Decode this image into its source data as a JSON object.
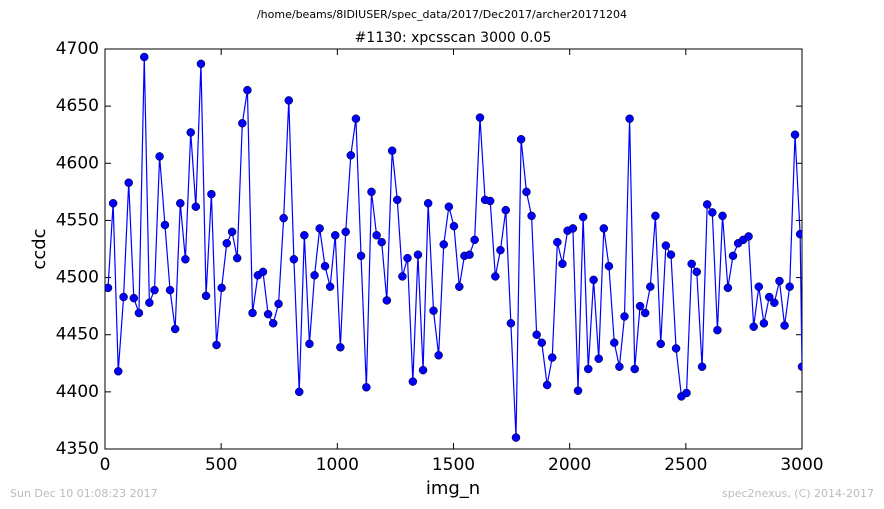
{
  "chart_data": {
    "type": "line",
    "suptitle": "/home/beams/8IDIUSER/spec_data/2017/Dec2017/archer20171204",
    "title": "#1130: xpcsscan 3000 0.05",
    "xlabel": "img_n",
    "ylabel": "ccdc",
    "footer_left": "Sun Dec 10 01:08:23 2017",
    "footer_right": "spec2nexus, (C) 2014-2017",
    "xlim": [
      0,
      3000
    ],
    "xticks": [
      0,
      500,
      1000,
      1500,
      2000,
      2500,
      3000
    ],
    "ylim": [
      4350,
      4700
    ],
    "yticks": [
      4350,
      4400,
      4450,
      4500,
      4550,
      4600,
      4650,
      4700
    ],
    "grid": false,
    "x": [
      13,
      35,
      57,
      80,
      102,
      124,
      146,
      169,
      191,
      213,
      235,
      258,
      280,
      302,
      324,
      346,
      369,
      391,
      413,
      435,
      458,
      480,
      502,
      524,
      547,
      569,
      591,
      613,
      635,
      658,
      680,
      702,
      724,
      747,
      769,
      791,
      813,
      836,
      858,
      880,
      902,
      924,
      947,
      969,
      991,
      1013,
      1036,
      1058,
      1080,
      1102,
      1125,
      1147,
      1169,
      1191,
      1213,
      1236,
      1258,
      1280,
      1302,
      1325,
      1347,
      1369,
      1391,
      1414,
      1436,
      1458,
      1480,
      1502,
      1525,
      1547,
      1569,
      1591,
      1614,
      1636,
      1658,
      1680,
      1702,
      1725,
      1747,
      1769,
      1791,
      1814,
      1836,
      1858,
      1880,
      1903,
      1925,
      1947,
      1969,
      1991,
      2014,
      2036,
      2058,
      2080,
      2103,
      2125,
      2147,
      2169,
      2192,
      2214,
      2236,
      2258,
      2280,
      2303,
      2325,
      2347,
      2369,
      2392,
      2414,
      2436,
      2458,
      2481,
      2503,
      2525,
      2547,
      2570,
      2592,
      2614,
      2636,
      2658,
      2681,
      2703,
      2725,
      2747,
      2770,
      2792,
      2814,
      2836,
      2859,
      2881,
      2903,
      2925,
      2947,
      2970,
      2992,
      3000
    ],
    "series": [
      {
        "name": "ccdc",
        "color": "#0000ff",
        "values": [
          4491,
          4565,
          4418,
          4483,
          4583,
          4482,
          4469,
          4693,
          4478,
          4489,
          4606,
          4546,
          4489,
          4455,
          4565,
          4516,
          4627,
          4562,
          4687,
          4484,
          4573,
          4441,
          4491,
          4530,
          4540,
          4517,
          4635,
          4664,
          4469,
          4502,
          4505,
          4468,
          4460,
          4477,
          4552,
          4655,
          4516,
          4400,
          4537,
          4442,
          4502,
          4543,
          4510,
          4492,
          4537,
          4439,
          4540,
          4607,
          4639,
          4519,
          4404,
          4575,
          4537,
          4531,
          4480,
          4611,
          4568,
          4501,
          4517,
          4409,
          4520,
          4419,
          4565,
          4471,
          4432,
          4529,
          4562,
          4545,
          4492,
          4519,
          4520,
          4533,
          4640,
          4568,
          4567,
          4501,
          4524,
          4559,
          4460,
          4360,
          4621,
          4575,
          4554,
          4450,
          4443,
          4406,
          4430,
          4531,
          4512,
          4541,
          4543,
          4401,
          4553,
          4420,
          4498,
          4429,
          4543,
          4510,
          4443,
          4422,
          4466,
          4639,
          4420,
          4475,
          4469,
          4492,
          4554,
          4442,
          4528,
          4520,
          4438,
          4396,
          4399,
          4512,
          4505,
          4422,
          4564,
          4557,
          4454,
          4554,
          4491,
          4519,
          4530,
          4533,
          4536,
          4457,
          4492,
          4460,
          4483,
          4478,
          4497,
          4458,
          4492,
          4625,
          4538,
          4422
        ]
      }
    ]
  }
}
